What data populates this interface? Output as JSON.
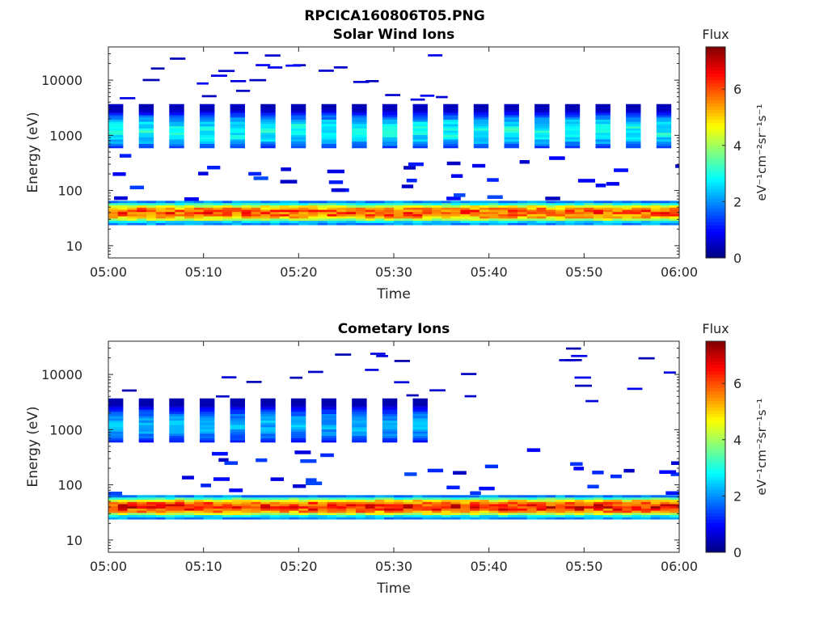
{
  "figure_title": "RPCICA160806T05.PNG",
  "chart_data": [
    {
      "type": "heatmap",
      "title": "Solar Wind Ions",
      "xlabel": "Time",
      "ylabel": "Energy (eV)",
      "x_ticks": [
        "05:00",
        "05:10",
        "05:20",
        "05:30",
        "05:40",
        "05:50",
        "06:00"
      ],
      "xlim": [
        "05:00",
        "06:00"
      ],
      "y_ticks": [
        10,
        100,
        1000,
        10000
      ],
      "y_tick_labels": [
        "10",
        "100",
        "1000",
        "10000"
      ],
      "yscale": "log",
      "ylim": [
        6,
        40000
      ],
      "colorbar": {
        "title": "Flux",
        "label": "eV⁻¹cm⁻²sr⁻¹s⁻¹",
        "range": [
          0,
          7.5
        ],
        "ticks": [
          0,
          2,
          4,
          6
        ]
      },
      "bands": [
        {
          "name": "low-energy band",
          "e_min": 25,
          "e_max": 65,
          "t_start": 0,
          "t_end": 60,
          "peak_value": 6.5
        },
        {
          "name": "mid-energy pulses",
          "e_min": 600,
          "e_max": 3500,
          "t_start": 0,
          "t_end": 60,
          "peak_value": 3.2,
          "pulse_period_min": 3.2
        },
        {
          "name": "sparse high-energy lines",
          "e_min": 4000,
          "e_max": 35000,
          "t_start": 0,
          "t_end": 35,
          "peak_value": 1.0
        },
        {
          "name": "scattered low-flux points",
          "e_min": 70,
          "e_max": 450,
          "t_start": 0,
          "t_end": 60,
          "peak_value": 1.5
        }
      ],
      "grid": false
    },
    {
      "type": "heatmap",
      "title": "Cometary Ions",
      "xlabel": "Time",
      "ylabel": "Energy (eV)",
      "x_ticks": [
        "05:00",
        "05:10",
        "05:20",
        "05:30",
        "05:40",
        "05:50",
        "06:00"
      ],
      "xlim": [
        "05:00",
        "06:00"
      ],
      "y_ticks": [
        10,
        100,
        1000,
        10000
      ],
      "y_tick_labels": [
        "10",
        "100",
        "1000",
        "10000"
      ],
      "yscale": "log",
      "ylim": [
        6,
        40000
      ],
      "colorbar": {
        "title": "Flux",
        "label": "eV⁻¹cm⁻²sr⁻¹s⁻¹",
        "range": [
          0,
          7.5
        ],
        "ticks": [
          0,
          2,
          4,
          6
        ]
      },
      "bands": [
        {
          "name": "low-energy band",
          "e_min": 25,
          "e_max": 65,
          "t_start": 0,
          "t_end": 60,
          "peak_value": 7.0
        },
        {
          "name": "mid-energy pulses",
          "e_min": 600,
          "e_max": 3500,
          "t_start": 0,
          "t_end": 33,
          "peak_value": 2.5,
          "pulse_period_min": 3.2
        },
        {
          "name": "sparse high-energy lines",
          "e_min": 2500,
          "e_max": 35000,
          "t_start": 0,
          "t_end": 60,
          "peak_value": 0.8
        },
        {
          "name": "scattered low-flux points",
          "e_min": 70,
          "e_max": 450,
          "t_start": 0,
          "t_end": 60,
          "peak_value": 1.5
        }
      ],
      "grid": false
    }
  ]
}
